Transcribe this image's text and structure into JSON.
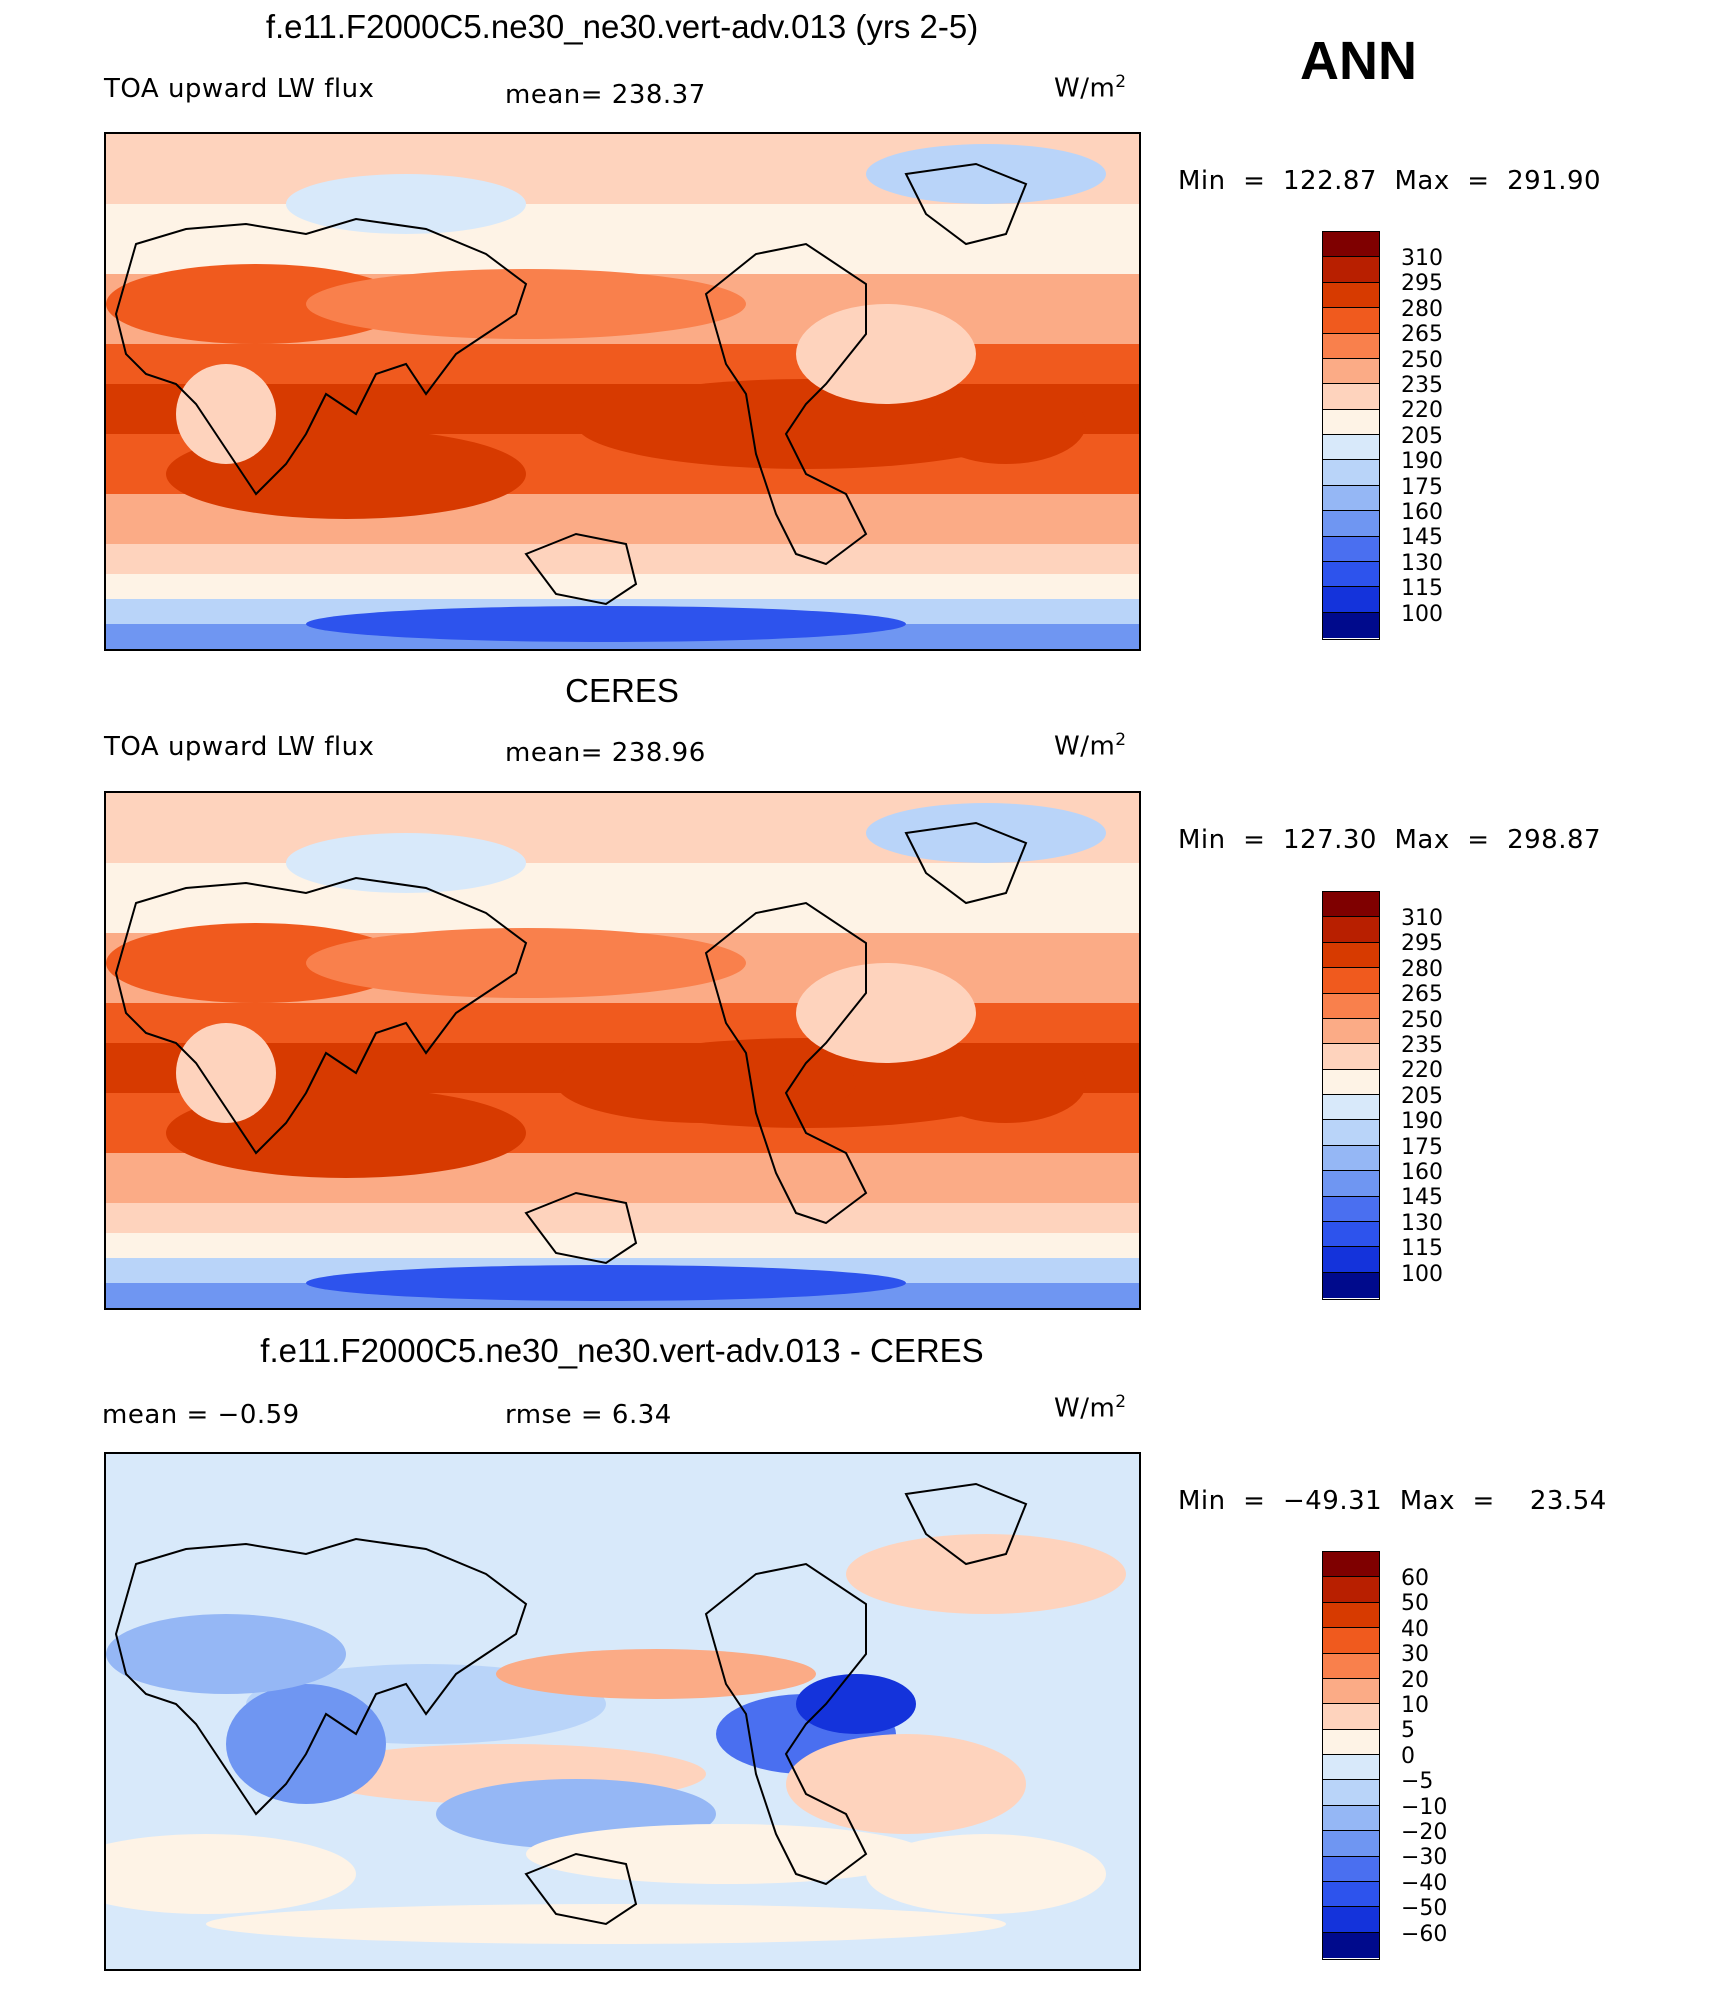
{
  "figure": {
    "season": "ANN",
    "colors": {
      "abs_scale": [
        "#7f0000",
        "#b81f00",
        "#d73a00",
        "#f05a1e",
        "#f9804c",
        "#fbab86",
        "#fed3bd",
        "#fef3e6",
        "#d8e9fa",
        "#b9d4f9",
        "#95b7f5",
        "#6f96f2",
        "#4a6ff0",
        "#2d53ed",
        "#1433db",
        "#000a8c"
      ],
      "diff_scale": [
        "#7f0000",
        "#b81f00",
        "#d73a00",
        "#f05a1e",
        "#f9804c",
        "#fbab86",
        "#fed3bd",
        "#fef3e6",
        "#d8e9fa",
        "#b9d4f9",
        "#95b7f5",
        "#6f96f2",
        "#4a6ff0",
        "#2d53ed",
        "#1433db",
        "#000a8c"
      ]
    }
  },
  "panels": [
    {
      "title": "f.e11.F2000C5.ne30_ne30.vert-adv.013 (yrs 2-5)",
      "left_label": "TOA upward LW flux",
      "mid_label": "mean=  238.37",
      "units_base": "W/m",
      "units_exp": "2",
      "minmax": "Min  =  122.87  Max  =  291.90",
      "colorbar_labels": [
        "310",
        "295",
        "280",
        "265",
        "250",
        "235",
        "220",
        "205",
        "190",
        "175",
        "160",
        "145",
        "130",
        "115",
        "100"
      ],
      "field": "model"
    },
    {
      "title": "CERES",
      "left_label": "TOA upward LW flux",
      "mid_label": "mean=  238.96",
      "units_base": "W/m",
      "units_exp": "2",
      "minmax": "Min  =  127.30  Max  =  298.87",
      "colorbar_labels": [
        "310",
        "295",
        "280",
        "265",
        "250",
        "235",
        "220",
        "205",
        "190",
        "175",
        "160",
        "145",
        "130",
        "115",
        "100"
      ],
      "field": "obs"
    },
    {
      "title": "f.e11.F2000C5.ne30_ne30.vert-adv.013 - CERES",
      "left_label": "mean =    −0.59",
      "mid_label": "rmse =     6.34",
      "units_base": "W/m",
      "units_exp": "2",
      "minmax": "Min  =  −49.31  Max  =    23.54",
      "colorbar_labels": [
        "60",
        "50",
        "40",
        "30",
        "20",
        "10",
        "5",
        "0",
        "−5",
        "−10",
        "−20",
        "−30",
        "−40",
        "−50",
        "−60"
      ],
      "field": "diff"
    }
  ]
}
